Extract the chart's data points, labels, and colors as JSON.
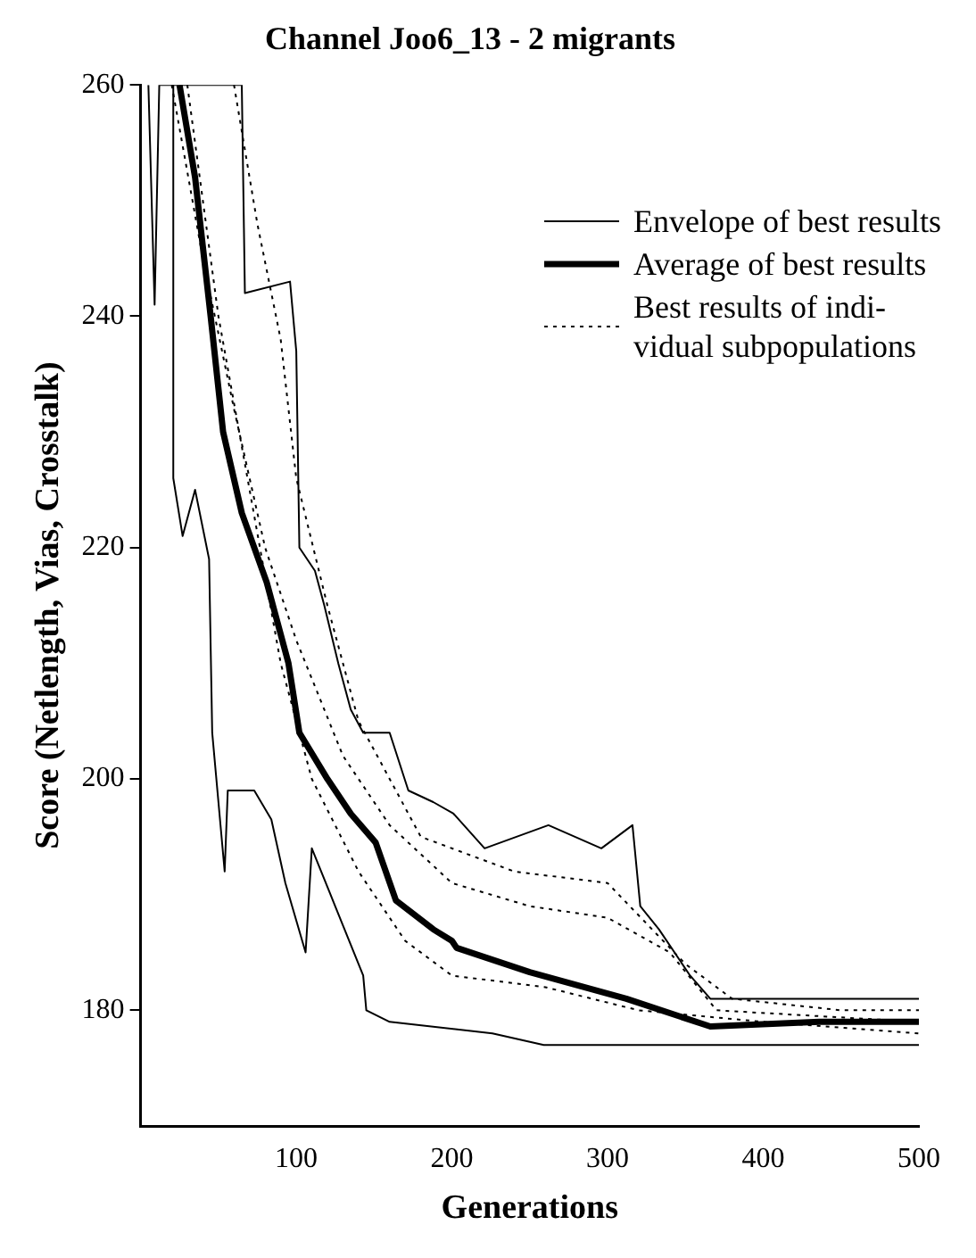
{
  "chart_data": {
    "type": "line",
    "title": "Channel Joo6_13 - 2 migrants",
    "xlabel": "Generations",
    "ylabel": "Score (Netlength, Vias, Crosstalk)",
    "xlim": [
      0,
      500
    ],
    "xticks": [
      100,
      200,
      300,
      400,
      500
    ],
    "ylim": [
      170,
      260
    ],
    "yticks": [
      180,
      200,
      220,
      240,
      260
    ],
    "grid": false,
    "legend": "top right",
    "marker": "none",
    "series": [
      {
        "name": "Envelope of best results",
        "color": "#000000",
        "line_style": "solid",
        "x": [
          5,
          9,
          12,
          65,
          67,
          96,
          100,
          102,
          112,
          118,
          127,
          135,
          143,
          160,
          172,
          188,
          201,
          221,
          262,
          296,
          316,
          321,
          333,
          353,
          366,
          420,
          500
        ],
        "values": [
          260,
          241,
          260,
          260,
          242,
          243,
          237,
          220,
          218,
          215,
          210,
          206,
          204,
          204,
          199,
          198,
          197,
          194,
          196,
          194,
          196,
          189,
          187,
          183,
          181,
          181,
          181
        ]
      },
      {
        "color": "#000000",
        "line_style": "solid",
        "x": [
          21,
          21,
          27,
          35,
          44,
          46,
          54,
          56,
          73,
          84,
          93,
          106,
          110,
          122,
          143,
          145,
          160,
          226,
          259,
          500
        ],
        "values": [
          260,
          226,
          221,
          225,
          219,
          204,
          192,
          199,
          199,
          196.5,
          191,
          185,
          194,
          190,
          183,
          180,
          179,
          178,
          177,
          177
        ]
      },
      {
        "name": "Average of best results",
        "color": "#000000",
        "line_style": "solid",
        "x": [
          25,
          35,
          45,
          53,
          65,
          81,
          95,
          102,
          120,
          135,
          151,
          164,
          188,
          200,
          203,
          250,
          312,
          366,
          436,
          500
        ],
        "values": [
          260,
          252,
          240,
          230,
          223,
          217,
          210,
          204,
          200,
          197,
          194.5,
          189.5,
          187,
          186,
          185.4,
          183.3,
          181,
          178.6,
          179,
          179
        ]
      },
      {
        "name": "Best results of indi-vidual subpopulations",
        "color": "#000000",
        "line_style": "dotted",
        "x": [
          20,
          40,
          60,
          80,
          100,
          130,
          160,
          200,
          250,
          300,
          340,
          370,
          500
        ],
        "values": [
          260,
          245,
          232,
          220,
          212,
          202,
          196,
          191,
          189,
          188,
          185,
          180,
          179
        ]
      },
      {
        "color": "#000000",
        "line_style": "dotted",
        "x": [
          30,
          50,
          70,
          90,
          110,
          140,
          170,
          200,
          260,
          320,
          400,
          500
        ],
        "values": [
          260,
          240,
          225,
          210,
          200,
          192,
          186,
          183,
          182,
          180,
          179,
          178
        ]
      },
      {
        "color": "#000000",
        "line_style": "dotted",
        "x": [
          60,
          75,
          90,
          100,
          120,
          140,
          180,
          240,
          300,
          350,
          380,
          450,
          500
        ],
        "values": [
          260,
          248,
          238,
          226,
          215,
          205,
          195,
          192,
          191,
          184,
          181,
          180,
          180
        ]
      }
    ]
  }
}
